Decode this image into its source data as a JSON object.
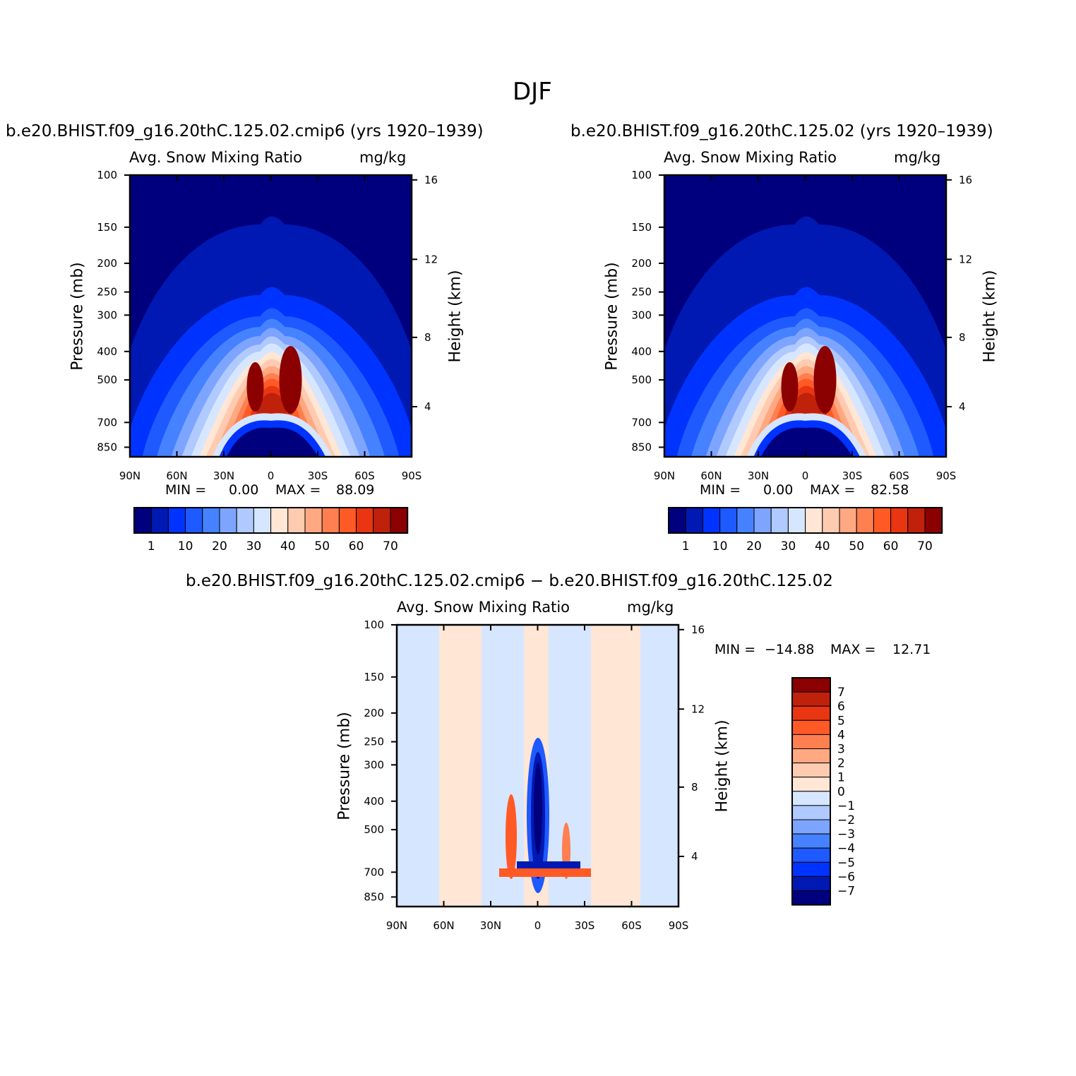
{
  "page": {
    "title": "DJF"
  },
  "colors": {
    "diverging_17": [
      "#00007f",
      "#0019b2",
      "#0033ff",
      "#1e5aff",
      "#4682ff",
      "#7da5ff",
      "#b0c9ff",
      "#d6e6ff",
      "#ffe6d5",
      "#ffcbb0",
      "#ffa882",
      "#ff7f50",
      "#ff5a26",
      "#e93512",
      "#bf210b",
      "#8b0000"
    ]
  },
  "chart_data": [
    {
      "id": "cmip6",
      "type": "heatmap",
      "title": "b.e20.BHIST.f09_g16.20thC.125.02.cmip6 (yrs 1920–1939)",
      "variable": "Avg. Snow Mixing Ratio",
      "units": "mg/kg",
      "xlabel": "",
      "ylabel": "Pressure (mb)",
      "y2label": "Height (km)",
      "x_ticks": [
        "90N",
        "60N",
        "30N",
        "0",
        "30S",
        "60S",
        "90S"
      ],
      "y_ticks": [
        "100",
        "150",
        "200",
        "250",
        "300",
        "400",
        "500",
        "700",
        "850"
      ],
      "y2_ticks": [
        "16",
        "12",
        "8",
        "4"
      ],
      "min_label": "MIN =",
      "min_value": "0.00",
      "max_label": "MAX =",
      "max_value": "88.09",
      "colorbar_labels": [
        "1",
        "10",
        "20",
        "30",
        "40",
        "50",
        "60",
        "70"
      ],
      "colorbar_orientation": "horizontal"
    },
    {
      "id": "base",
      "type": "heatmap",
      "title": "b.e20.BHIST.f09_g16.20thC.125.02 (yrs 1920–1939)",
      "variable": "Avg. Snow Mixing Ratio",
      "units": "mg/kg",
      "xlabel": "",
      "ylabel": "Pressure (mb)",
      "y2label": "Height (km)",
      "x_ticks": [
        "90N",
        "60N",
        "30N",
        "0",
        "30S",
        "60S",
        "90S"
      ],
      "y_ticks": [
        "100",
        "150",
        "200",
        "250",
        "300",
        "400",
        "500",
        "700",
        "850"
      ],
      "y2_ticks": [
        "16",
        "12",
        "8",
        "4"
      ],
      "min_label": "MIN =",
      "min_value": "0.00",
      "max_label": "MAX =",
      "max_value": "82.58",
      "colorbar_labels": [
        "1",
        "10",
        "20",
        "30",
        "40",
        "50",
        "60",
        "70"
      ],
      "colorbar_orientation": "horizontal"
    },
    {
      "id": "diff",
      "type": "heatmap",
      "title": "b.e20.BHIST.f09_g16.20thC.125.02.cmip6 − b.e20.BHIST.f09_g16.20thC.125.02",
      "variable": "Avg. Snow Mixing Ratio",
      "units": "mg/kg",
      "xlabel": "",
      "ylabel": "Pressure (mb)",
      "y2label": "Height (km)",
      "x_ticks": [
        "90N",
        "60N",
        "30N",
        "0",
        "30S",
        "60S",
        "90S"
      ],
      "y_ticks": [
        "100",
        "150",
        "200",
        "250",
        "300",
        "400",
        "500",
        "700",
        "850"
      ],
      "y2_ticks": [
        "16",
        "12",
        "8",
        "4"
      ],
      "min_label": "MIN =",
      "min_value": "−14.88",
      "max_label": "MAX =",
      "max_value": "12.71",
      "colorbar_labels": [
        "7",
        "6",
        "5",
        "4",
        "3",
        "2",
        "1",
        "0",
        "−1",
        "−2",
        "−3",
        "−4",
        "−5",
        "−6",
        "−7"
      ],
      "colorbar_orientation": "vertical"
    }
  ]
}
